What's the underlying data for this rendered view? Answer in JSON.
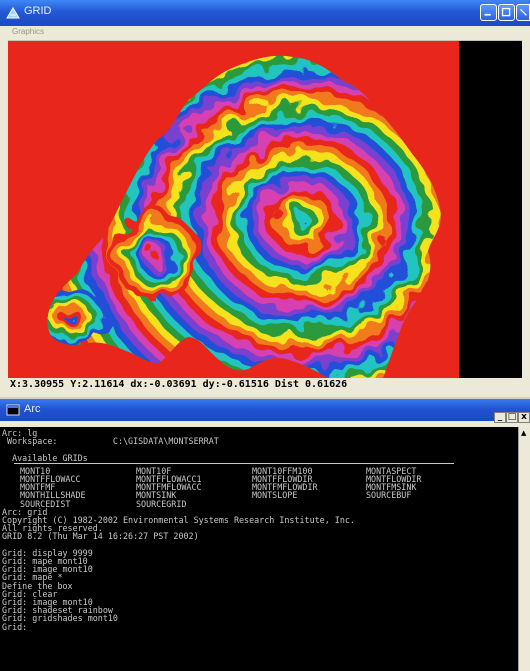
{
  "grid_window": {
    "title": "GRID",
    "menu_label": "Graphics",
    "status": "X:3.30955 Y:2.11614 dx:-0.03691 dy:-0.61516 Dist 0.61626",
    "colors": {
      "background": "#e8261c",
      "mask": "#000000"
    }
  },
  "arc_window": {
    "title": "Arc",
    "lines_top": [
      "Arc: lg",
      " Workspace:           C:\\GISDATA\\MONTSERRAT",
      "",
      "  Available GRIDs"
    ],
    "grids": [
      [
        "MONT10",
        "MONT10F",
        "MONT10FFM100",
        "MONTASPECT"
      ],
      [
        "MONTFFLOWACC",
        "MONTFFLOWACC1",
        "MONTFFLOWDIR",
        "MONTFLOWDIR"
      ],
      [
        "MONTFMF",
        "MONTFMFLOWACC",
        "MONTFMFLOWDIR",
        "MONTFMSINK"
      ],
      [
        "MONTHILLSHADE",
        "MONTSINK",
        "MONTSLOPE",
        "SOURCEBUF"
      ],
      [
        "SOURCEDIST",
        "SOURCEGRID",
        "",
        ""
      ]
    ],
    "lines_bottom": [
      "Arc: grid",
      "Copyright (C) 1982-2002 Environmental Systems Research Institute, Inc.",
      "All rights reserved.",
      "GRID 8.2 (Thu Mar 14 16:26:27 PST 2002)",
      "",
      "Grid: display 9999",
      "Grid: mape mont10",
      "Grid: image mont10",
      "Grid: mape *",
      "Define the box",
      "Grid: clear",
      "Grid: image mont10",
      "Grid: shadeset rainbow",
      "Grid: gridshades mont10",
      "Grid:"
    ],
    "buttons": {
      "minimize": "_",
      "maximize": "□",
      "close": "x"
    }
  }
}
